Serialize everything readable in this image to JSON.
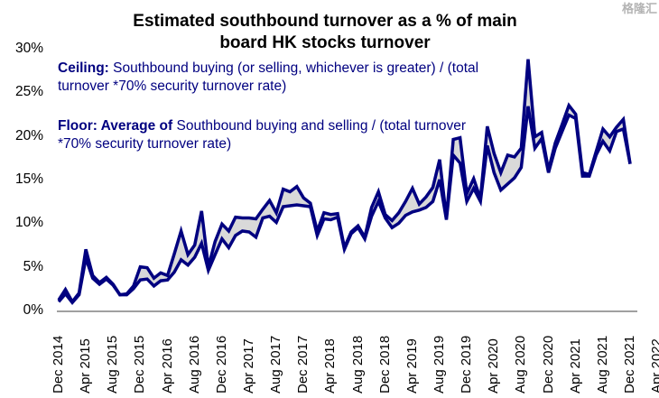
{
  "chart_data": {
    "type": "area",
    "title": "Estimated southbound turnover as a % of main board HK stocks turnover",
    "title_lines": [
      "Estimated southbound turnover as a % of main",
      "board HK stocks turnover"
    ],
    "xlabel": "",
    "ylabel": "",
    "ylim": [
      0,
      30
    ],
    "yticks": [
      "0%",
      "5%",
      "10%",
      "15%",
      "20%",
      "25%",
      "30%"
    ],
    "ytick_values": [
      0,
      5,
      10,
      15,
      20,
      25,
      30
    ],
    "xticks": [
      "Dec 2014",
      "Apr 2015",
      "Aug 2015",
      "Dec 2015",
      "Apr 2016",
      "Aug 2016",
      "Dec 2016",
      "Apr 2017",
      "Aug 2017",
      "Dec 2017",
      "Apr 2018",
      "Aug 2018",
      "Dec 2018",
      "Apr 2019",
      "Aug 2019",
      "Dec 2019",
      "Apr 2020",
      "Aug 2020",
      "Dec 2020",
      "Apr 2021",
      "Aug 2021",
      "Dec 2021",
      "Apr 2022"
    ],
    "x_start": "Dec 2014",
    "x_end": "Apr 2022",
    "x_frequency": "monthly",
    "grid": false,
    "annotations": [
      {
        "label": "Ceiling:",
        "text": "Southbound buying (or selling, whichever is greater)  / (total turnover *70% security turnover rate)"
      },
      {
        "label": "Floor: Average of",
        "text": "Southbound buying and selling / (total turnover *70% security turnover rate)"
      }
    ],
    "series": [
      {
        "name": "Ceiling",
        "color": "#000080",
        "values": [
          1.2,
          2.4,
          1.0,
          2.0,
          7.0,
          4.0,
          3.2,
          3.8,
          3.0,
          1.8,
          1.9,
          2.8,
          5.0,
          4.9,
          3.7,
          4.3,
          4.0,
          6.5,
          9.1,
          6.4,
          7.5,
          11.4,
          5.0,
          7.9,
          9.9,
          9.1,
          10.7,
          10.6,
          10.6,
          10.5,
          11.6,
          12.6,
          11.2,
          13.9,
          13.6,
          14.2,
          12.9,
          12.3,
          9.1,
          11.2,
          11.0,
          11.1,
          7.2,
          9.0,
          9.7,
          8.4,
          11.8,
          13.6,
          11.0,
          10.3,
          11.2,
          12.5,
          14.0,
          12.2,
          13.0,
          14.1,
          17.3,
          10.6,
          19.6,
          19.8,
          13.4,
          15.1,
          12.8,
          21.1,
          18.0,
          15.8,
          17.8,
          17.6,
          18.6,
          28.8,
          19.9,
          20.4,
          16.1,
          19.2,
          21.3,
          23.5,
          22.5,
          15.8,
          15.6,
          18.2,
          20.8,
          19.9,
          21.0,
          21.9,
          16.8
        ]
      },
      {
        "name": "Floor",
        "color": "#000080",
        "values": [
          1.0,
          1.9,
          0.9,
          1.8,
          6.0,
          3.7,
          3.0,
          3.6,
          2.9,
          1.8,
          1.8,
          2.5,
          3.5,
          3.6,
          2.8,
          3.4,
          3.5,
          4.4,
          5.8,
          5.2,
          6.1,
          7.7,
          4.6,
          6.4,
          8.2,
          7.2,
          8.6,
          9.1,
          9.0,
          8.4,
          10.6,
          10.8,
          10.1,
          11.9,
          12.0,
          12.1,
          12.0,
          11.9,
          8.6,
          10.5,
          10.4,
          10.7,
          7.0,
          8.8,
          9.5,
          8.2,
          10.8,
          12.5,
          10.6,
          9.5,
          10.0,
          10.9,
          11.3,
          11.5,
          11.8,
          12.5,
          15.0,
          10.4,
          17.8,
          16.9,
          12.5,
          14.0,
          12.5,
          18.9,
          15.8,
          13.8,
          14.5,
          15.2,
          16.4,
          23.4,
          18.6,
          19.7,
          15.8,
          18.6,
          20.5,
          22.4,
          22.0,
          15.4,
          15.4,
          17.8,
          19.4,
          18.3,
          20.5,
          20.8,
          16.8
        ]
      }
    ],
    "band_fill_color": "#d9d9d9"
  },
  "watermark": "格隆汇"
}
